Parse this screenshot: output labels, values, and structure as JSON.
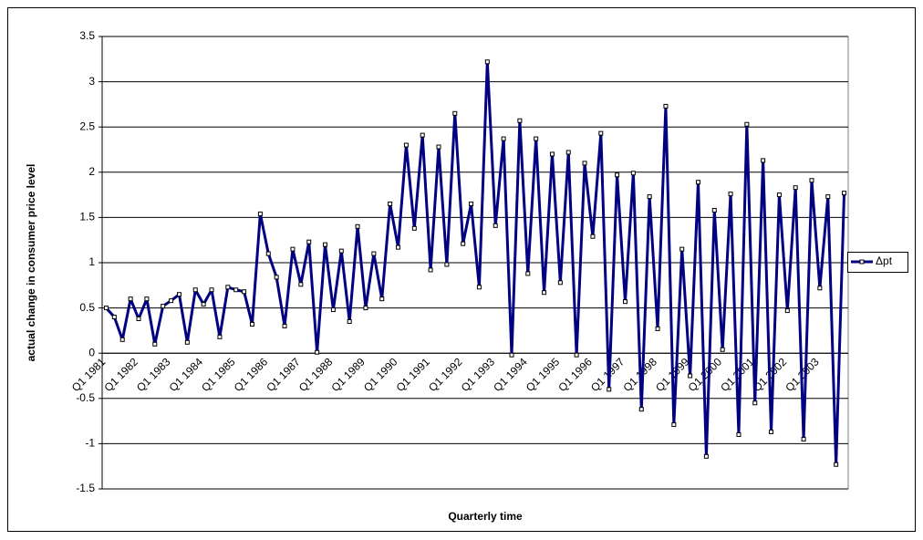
{
  "chart_data": {
    "type": "line",
    "y_label": "actual change in consumer price level",
    "x_label": "Quarterly time",
    "categories": [
      "Q1 1981",
      null,
      null,
      null,
      "Q1 1982",
      null,
      null,
      null,
      "Q1 1983",
      null,
      null,
      null,
      "Q1 1984",
      null,
      null,
      null,
      "Q1 1985",
      null,
      null,
      null,
      "Q1 1986",
      null,
      null,
      null,
      "Q1 1987",
      null,
      null,
      null,
      "Q1 1988",
      null,
      null,
      null,
      "Q1 1989",
      null,
      null,
      null,
      "Q1 1990",
      null,
      null,
      null,
      "Q1 1991",
      null,
      null,
      null,
      "Q1 1992",
      null,
      null,
      null,
      "Q1 1993",
      null,
      null,
      null,
      "Q1 1994",
      null,
      null,
      null,
      "Q1 1995",
      null,
      null,
      null,
      "Q1 1996",
      null,
      null,
      null,
      "Q1 1997",
      null,
      null,
      null,
      "Q1 1998",
      null,
      null,
      null,
      "Q1 1999",
      null,
      null,
      null,
      "Q1 2000",
      null,
      null,
      null,
      "Q1 2001",
      null,
      null,
      null,
      "Q1 2002",
      null,
      null,
      null,
      "Q1 2003",
      null,
      null,
      null
    ],
    "series": [
      {
        "name": "Δpt",
        "color": "#000080",
        "values": [
          0.5,
          0.4,
          0.15,
          0.6,
          0.38,
          0.6,
          0.1,
          0.52,
          0.58,
          0.65,
          0.12,
          0.7,
          0.54,
          0.7,
          0.18,
          0.73,
          0.7,
          0.68,
          0.32,
          1.54,
          1.1,
          0.84,
          0.3,
          1.15,
          0.76,
          1.23,
          0.01,
          1.2,
          0.48,
          1.13,
          0.35,
          1.4,
          0.5,
          1.1,
          0.6,
          1.65,
          1.17,
          2.3,
          1.38,
          2.41,
          0.92,
          2.28,
          0.98,
          2.65,
          1.21,
          1.65,
          0.73,
          3.22,
          1.41,
          2.37,
          -0.02,
          2.57,
          0.88,
          2.37,
          0.67,
          2.2,
          0.78,
          2.22,
          -0.02,
          2.1,
          1.29,
          2.43,
          -0.4,
          1.97,
          0.57,
          1.99,
          -0.62,
          1.73,
          0.27,
          2.73,
          -0.79,
          1.15,
          -0.25,
          1.89,
          -1.14,
          1.58,
          0.04,
          1.76,
          -0.9,
          2.53,
          -0.55,
          2.13,
          -0.87,
          1.75,
          0.47,
          1.83,
          -0.95,
          1.91,
          0.72,
          1.73,
          -1.23,
          1.77
        ]
      }
    ],
    "ylim": [
      -1.5,
      3.5
    ],
    "yticks": [
      -1.5,
      -1,
      -0.5,
      0,
      0.5,
      1,
      1.5,
      2,
      2.5,
      3,
      3.5
    ],
    "grid": true,
    "legend": "right"
  }
}
